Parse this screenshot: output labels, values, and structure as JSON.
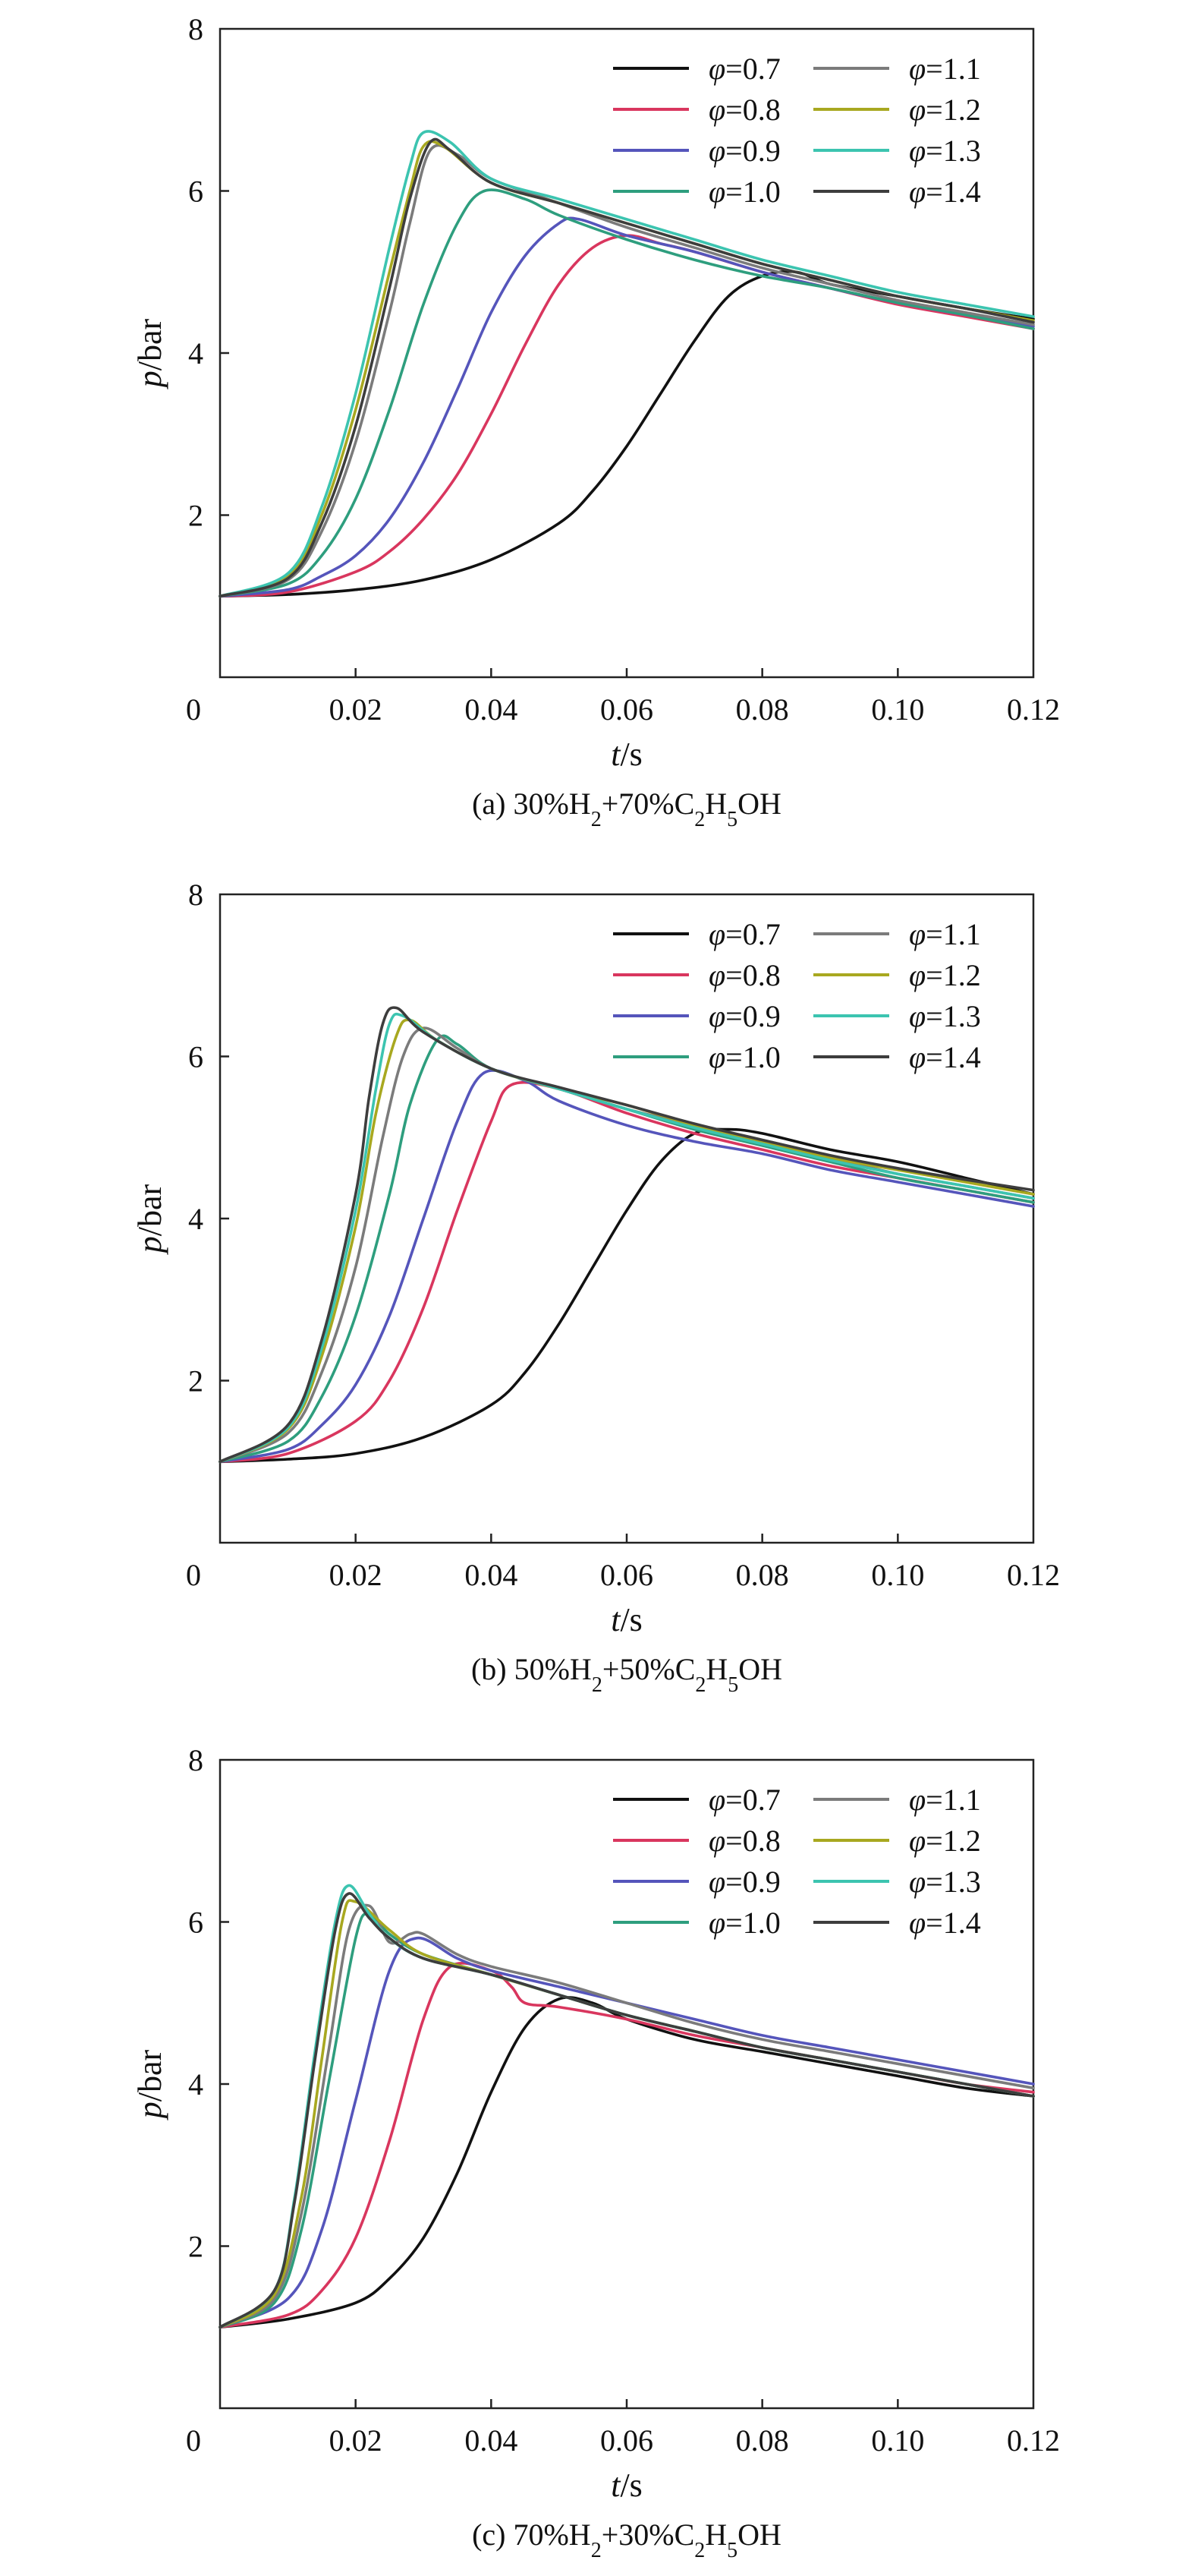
{
  "chart_data": [
    {
      "type": "line",
      "caption": "(a) 30%H₂+70%C₂H₅OH",
      "xlabel": {
        "var": "t",
        "unit": "/s"
      },
      "ylabel": {
        "var": "p",
        "unit": "/bar"
      },
      "xlim": [
        0,
        0.12
      ],
      "ylim": [
        0,
        8
      ],
      "xticks": [
        "0",
        "0.02",
        "0.04",
        "0.06",
        "0.08",
        "0.10",
        "0.12"
      ],
      "yticks": [
        "2",
        "4",
        "6",
        "8"
      ],
      "grid": false,
      "legend_position": "top-right",
      "series": [
        {
          "name": "φ=0.7",
          "color": "#111111",
          "x": [
            0,
            0.01,
            0.02,
            0.03,
            0.04,
            0.05,
            0.055,
            0.06,
            0.065,
            0.07,
            0.075,
            0.08,
            0.085,
            0.09,
            0.1,
            0.11,
            0.12
          ],
          "y": [
            1.0,
            1.02,
            1.08,
            1.2,
            1.45,
            1.9,
            2.3,
            2.85,
            3.5,
            4.15,
            4.7,
            4.95,
            5.0,
            4.85,
            4.7,
            4.55,
            4.42
          ]
        },
        {
          "name": "φ=0.8",
          "color": "#d9365e",
          "x": [
            0,
            0.01,
            0.02,
            0.025,
            0.03,
            0.035,
            0.04,
            0.045,
            0.05,
            0.055,
            0.06,
            0.065,
            0.07,
            0.08,
            0.09,
            0.1,
            0.11,
            0.12
          ],
          "y": [
            1.0,
            1.05,
            1.3,
            1.55,
            1.95,
            2.5,
            3.25,
            4.1,
            4.85,
            5.3,
            5.45,
            5.35,
            5.25,
            5.0,
            4.8,
            4.6,
            4.45,
            4.3
          ]
        },
        {
          "name": "φ=0.9",
          "color": "#5555bb",
          "x": [
            0,
            0.01,
            0.015,
            0.02,
            0.025,
            0.03,
            0.035,
            0.04,
            0.045,
            0.05,
            0.053,
            0.06,
            0.07,
            0.08,
            0.09,
            0.1,
            0.11,
            0.12
          ],
          "y": [
            1.0,
            1.08,
            1.25,
            1.5,
            1.95,
            2.65,
            3.55,
            4.5,
            5.2,
            5.6,
            5.65,
            5.45,
            5.25,
            5.0,
            4.8,
            4.62,
            4.47,
            4.33
          ]
        },
        {
          "name": "φ=1.0",
          "color": "#2e9e7e",
          "x": [
            0,
            0.01,
            0.015,
            0.02,
            0.025,
            0.03,
            0.035,
            0.039,
            0.045,
            0.05,
            0.06,
            0.07,
            0.08,
            0.09,
            0.1,
            0.11,
            0.12
          ],
          "y": [
            1.0,
            1.15,
            1.5,
            2.2,
            3.3,
            4.6,
            5.6,
            6.0,
            5.9,
            5.7,
            5.4,
            5.15,
            4.95,
            4.8,
            4.62,
            4.47,
            4.3
          ]
        },
        {
          "name": "φ=1.1",
          "color": "#7b7b7b",
          "x": [
            0,
            0.01,
            0.015,
            0.02,
            0.025,
            0.028,
            0.031,
            0.035,
            0.04,
            0.05,
            0.06,
            0.07,
            0.08,
            0.09,
            0.1,
            0.11,
            0.12
          ],
          "y": [
            1.0,
            1.2,
            1.8,
            2.9,
            4.5,
            5.6,
            6.5,
            6.45,
            6.15,
            5.85,
            5.55,
            5.3,
            5.05,
            4.85,
            4.65,
            4.5,
            4.35
          ]
        },
        {
          "name": "φ=1.2",
          "color": "#a8a820",
          "x": [
            0,
            0.01,
            0.015,
            0.02,
            0.025,
            0.028,
            0.03,
            0.033,
            0.04,
            0.05,
            0.06,
            0.07,
            0.08,
            0.09,
            0.1,
            0.11,
            0.12
          ],
          "y": [
            1.0,
            1.25,
            2.0,
            3.3,
            5.0,
            6.0,
            6.55,
            6.55,
            6.1,
            5.85,
            5.6,
            5.35,
            5.1,
            4.9,
            4.7,
            4.55,
            4.4
          ]
        },
        {
          "name": "φ=1.3",
          "color": "#3cc4b0",
          "x": [
            0,
            0.01,
            0.015,
            0.02,
            0.025,
            0.028,
            0.03,
            0.034,
            0.04,
            0.05,
            0.06,
            0.07,
            0.08,
            0.09,
            0.1,
            0.11,
            0.12
          ],
          "y": [
            1.0,
            1.28,
            2.1,
            3.5,
            5.3,
            6.3,
            6.72,
            6.6,
            6.15,
            5.9,
            5.65,
            5.4,
            5.15,
            4.95,
            4.75,
            4.6,
            4.45
          ]
        },
        {
          "name": "φ=1.4",
          "color": "#3d3d3d",
          "x": [
            0,
            0.01,
            0.015,
            0.02,
            0.025,
            0.028,
            0.031,
            0.034,
            0.04,
            0.05,
            0.06,
            0.07,
            0.08,
            0.09,
            0.1,
            0.11,
            0.12
          ],
          "y": [
            1.0,
            1.22,
            1.9,
            3.1,
            4.8,
            5.9,
            6.6,
            6.5,
            6.1,
            5.85,
            5.6,
            5.35,
            5.1,
            4.9,
            4.7,
            4.55,
            4.38
          ]
        }
      ]
    },
    {
      "type": "line",
      "caption": "(b) 50%H₂+50%C₂H₅OH",
      "xlabel": {
        "var": "t",
        "unit": "/s"
      },
      "ylabel": {
        "var": "p",
        "unit": "/bar"
      },
      "xlim": [
        0,
        0.12
      ],
      "ylim": [
        0,
        8
      ],
      "xticks": [
        "0",
        "0.02",
        "0.04",
        "0.06",
        "0.08",
        "0.10",
        "0.12"
      ],
      "yticks": [
        "2",
        "4",
        "6",
        "8"
      ],
      "grid": false,
      "legend_position": "top-right",
      "series": [
        {
          "name": "φ=0.7",
          "color": "#111111",
          "x": [
            0,
            0.01,
            0.02,
            0.03,
            0.04,
            0.045,
            0.05,
            0.055,
            0.06,
            0.065,
            0.07,
            0.075,
            0.08,
            0.09,
            0.1,
            0.11,
            0.12
          ],
          "y": [
            1.0,
            1.03,
            1.1,
            1.3,
            1.7,
            2.1,
            2.7,
            3.4,
            4.1,
            4.7,
            5.05,
            5.1,
            5.05,
            4.85,
            4.7,
            4.5,
            4.3
          ]
        },
        {
          "name": "φ=0.8",
          "color": "#d9365e",
          "x": [
            0,
            0.01,
            0.02,
            0.025,
            0.03,
            0.035,
            0.04,
            0.043,
            0.05,
            0.06,
            0.07,
            0.08,
            0.09,
            0.1,
            0.11,
            0.12
          ],
          "y": [
            1.0,
            1.1,
            1.5,
            2.0,
            2.9,
            4.1,
            5.2,
            5.65,
            5.6,
            5.3,
            5.05,
            4.85,
            4.65,
            4.5,
            4.35,
            4.2
          ]
        },
        {
          "name": "φ=0.9",
          "color": "#5555bb",
          "x": [
            0,
            0.01,
            0.015,
            0.02,
            0.025,
            0.03,
            0.035,
            0.039,
            0.045,
            0.05,
            0.06,
            0.07,
            0.08,
            0.09,
            0.1,
            0.11,
            0.12
          ],
          "y": [
            1.0,
            1.15,
            1.45,
            1.95,
            2.8,
            4.0,
            5.2,
            5.8,
            5.7,
            5.45,
            5.15,
            4.95,
            4.8,
            4.6,
            4.45,
            4.3,
            4.15
          ]
        },
        {
          "name": "φ=1.0",
          "color": "#2e9e7e",
          "x": [
            0,
            0.01,
            0.015,
            0.02,
            0.025,
            0.028,
            0.032,
            0.035,
            0.04,
            0.05,
            0.06,
            0.07,
            0.08,
            0.09,
            0.1,
            0.11,
            0.12
          ],
          "y": [
            1.0,
            1.25,
            1.8,
            2.8,
            4.3,
            5.4,
            6.2,
            6.15,
            5.85,
            5.6,
            5.35,
            5.1,
            4.9,
            4.7,
            4.5,
            4.35,
            4.2
          ]
        },
        {
          "name": "φ=1.1",
          "color": "#7b7b7b",
          "x": [
            0,
            0.01,
            0.015,
            0.02,
            0.024,
            0.027,
            0.03,
            0.035,
            0.04,
            0.05,
            0.06,
            0.07,
            0.08,
            0.09,
            0.1,
            0.11,
            0.12
          ],
          "y": [
            1.0,
            1.35,
            2.1,
            3.4,
            5.0,
            6.0,
            6.35,
            6.1,
            5.85,
            5.6,
            5.35,
            5.15,
            4.95,
            4.75,
            4.55,
            4.4,
            4.25
          ]
        },
        {
          "name": "φ=1.2",
          "color": "#a8a820",
          "x": [
            0,
            0.01,
            0.015,
            0.02,
            0.023,
            0.026,
            0.028,
            0.032,
            0.04,
            0.05,
            0.06,
            0.07,
            0.08,
            0.09,
            0.1,
            0.11,
            0.12
          ],
          "y": [
            1.0,
            1.4,
            2.3,
            3.9,
            5.3,
            6.25,
            6.45,
            6.2,
            5.85,
            5.6,
            5.4,
            5.15,
            4.95,
            4.75,
            4.6,
            4.45,
            4.3
          ]
        },
        {
          "name": "φ=1.3",
          "color": "#3cc4b0",
          "x": [
            0,
            0.01,
            0.015,
            0.02,
            0.023,
            0.025,
            0.027,
            0.032,
            0.04,
            0.05,
            0.06,
            0.07,
            0.08,
            0.09,
            0.1,
            0.11,
            0.12
          ],
          "y": [
            1.0,
            1.42,
            2.4,
            4.1,
            5.6,
            6.4,
            6.5,
            6.2,
            5.85,
            5.6,
            5.35,
            5.12,
            4.92,
            4.72,
            4.55,
            4.4,
            4.25
          ]
        },
        {
          "name": "φ=1.4",
          "color": "#3d3d3d",
          "x": [
            0,
            0.01,
            0.015,
            0.02,
            0.022,
            0.024,
            0.026,
            0.03,
            0.04,
            0.05,
            0.06,
            0.07,
            0.08,
            0.09,
            0.1,
            0.11,
            0.12
          ],
          "y": [
            1.0,
            1.45,
            2.5,
            4.3,
            5.5,
            6.4,
            6.6,
            6.3,
            5.85,
            5.62,
            5.4,
            5.17,
            4.97,
            4.78,
            4.62,
            4.48,
            4.35
          ]
        }
      ]
    },
    {
      "type": "line",
      "caption": "(c) 70%H₂+30%C₂H₅OH",
      "xlabel": {
        "var": "t",
        "unit": "/s"
      },
      "ylabel": {
        "var": "p",
        "unit": "/bar"
      },
      "xlim": [
        0,
        0.12
      ],
      "ylim": [
        0,
        8
      ],
      "xticks": [
        "0",
        "0.02",
        "0.04",
        "0.06",
        "0.08",
        "0.10",
        "0.12"
      ],
      "yticks": [
        "2",
        "4",
        "6",
        "8"
      ],
      "grid": false,
      "legend_position": "top-right",
      "series": [
        {
          "name": "φ=0.7",
          "color": "#111111",
          "x": [
            0,
            0.01,
            0.02,
            0.025,
            0.03,
            0.035,
            0.04,
            0.045,
            0.05,
            0.055,
            0.06,
            0.07,
            0.08,
            0.09,
            0.1,
            0.11,
            0.12
          ],
          "y": [
            1.0,
            1.1,
            1.3,
            1.6,
            2.1,
            2.9,
            3.9,
            4.7,
            5.05,
            5.0,
            4.8,
            4.55,
            4.4,
            4.25,
            4.1,
            3.95,
            3.85
          ]
        },
        {
          "name": "φ=0.8",
          "color": "#d9365e",
          "x": [
            0,
            0.01,
            0.015,
            0.02,
            0.025,
            0.03,
            0.034,
            0.04,
            0.043,
            0.045,
            0.05,
            0.06,
            0.07,
            0.08,
            0.09,
            0.1,
            0.11,
            0.12
          ],
          "y": [
            1.0,
            1.15,
            1.45,
            2.1,
            3.3,
            4.8,
            5.45,
            5.4,
            5.2,
            5.0,
            4.95,
            4.8,
            4.6,
            4.45,
            4.3,
            4.15,
            4.0,
            3.9
          ]
        },
        {
          "name": "φ=0.9",
          "color": "#5555bb",
          "x": [
            0,
            0.01,
            0.015,
            0.02,
            0.025,
            0.029,
            0.035,
            0.04,
            0.05,
            0.06,
            0.07,
            0.08,
            0.09,
            0.1,
            0.11,
            0.12
          ],
          "y": [
            1.0,
            1.35,
            2.2,
            3.8,
            5.4,
            5.8,
            5.55,
            5.4,
            5.2,
            5.0,
            4.8,
            4.6,
            4.45,
            4.3,
            4.15,
            4.0
          ]
        },
        {
          "name": "φ=1.0",
          "color": "#2e9e7e",
          "x": [
            0,
            0.008,
            0.012,
            0.016,
            0.02,
            0.022,
            0.025,
            0.03,
            0.04,
            0.05,
            0.06,
            0.07,
            0.08,
            0.09,
            0.1,
            0.11,
            0.12
          ],
          "y": [
            1.0,
            1.3,
            2.2,
            4.0,
            5.8,
            6.1,
            5.85,
            5.6,
            5.35,
            5.1,
            4.85,
            4.65,
            4.45,
            4.3,
            4.15,
            4.0,
            3.85
          ]
        },
        {
          "name": "φ=1.1",
          "color": "#7b7b7b",
          "x": [
            0,
            0.008,
            0.012,
            0.016,
            0.019,
            0.022,
            0.025,
            0.028,
            0.03,
            0.035,
            0.04,
            0.05,
            0.06,
            0.07,
            0.08,
            0.09,
            0.1,
            0.11,
            0.12
          ],
          "y": [
            1.0,
            1.35,
            2.4,
            4.4,
            5.9,
            6.2,
            5.75,
            5.85,
            5.85,
            5.6,
            5.45,
            5.25,
            5.0,
            4.75,
            4.55,
            4.4,
            4.25,
            4.1,
            3.95
          ]
        },
        {
          "name": "φ=1.2",
          "color": "#a8a820",
          "x": [
            0,
            0.008,
            0.012,
            0.015,
            0.018,
            0.02,
            0.025,
            0.03,
            0.04,
            0.05,
            0.06,
            0.07,
            0.08,
            0.09,
            0.1,
            0.11,
            0.12
          ],
          "y": [
            1.0,
            1.4,
            2.6,
            4.3,
            6.0,
            6.25,
            5.9,
            5.6,
            5.35,
            5.1,
            4.85,
            4.65,
            4.45,
            4.3,
            4.15,
            4.0,
            3.85
          ]
        },
        {
          "name": "φ=1.3",
          "color": "#3cc4b0",
          "x": [
            0,
            0.008,
            0.011,
            0.014,
            0.017,
            0.019,
            0.022,
            0.025,
            0.03,
            0.04,
            0.05,
            0.06,
            0.07,
            0.08,
            0.09,
            0.1,
            0.11,
            0.12
          ],
          "y": [
            1.0,
            1.45,
            2.6,
            4.4,
            6.0,
            6.45,
            6.1,
            5.8,
            5.55,
            5.35,
            5.1,
            4.85,
            4.65,
            4.45,
            4.3,
            4.15,
            4.0,
            3.85
          ]
        },
        {
          "name": "φ=1.4",
          "color": "#3d3d3d",
          "x": [
            0,
            0.008,
            0.011,
            0.014,
            0.017,
            0.019,
            0.022,
            0.025,
            0.03,
            0.04,
            0.05,
            0.06,
            0.07,
            0.08,
            0.09,
            0.1,
            0.11,
            0.12
          ],
          "y": [
            1.0,
            1.45,
            2.55,
            4.3,
            5.9,
            6.35,
            6.05,
            5.8,
            5.55,
            5.35,
            5.1,
            4.85,
            4.65,
            4.45,
            4.3,
            4.15,
            4.0,
            3.85
          ]
        }
      ]
    }
  ]
}
